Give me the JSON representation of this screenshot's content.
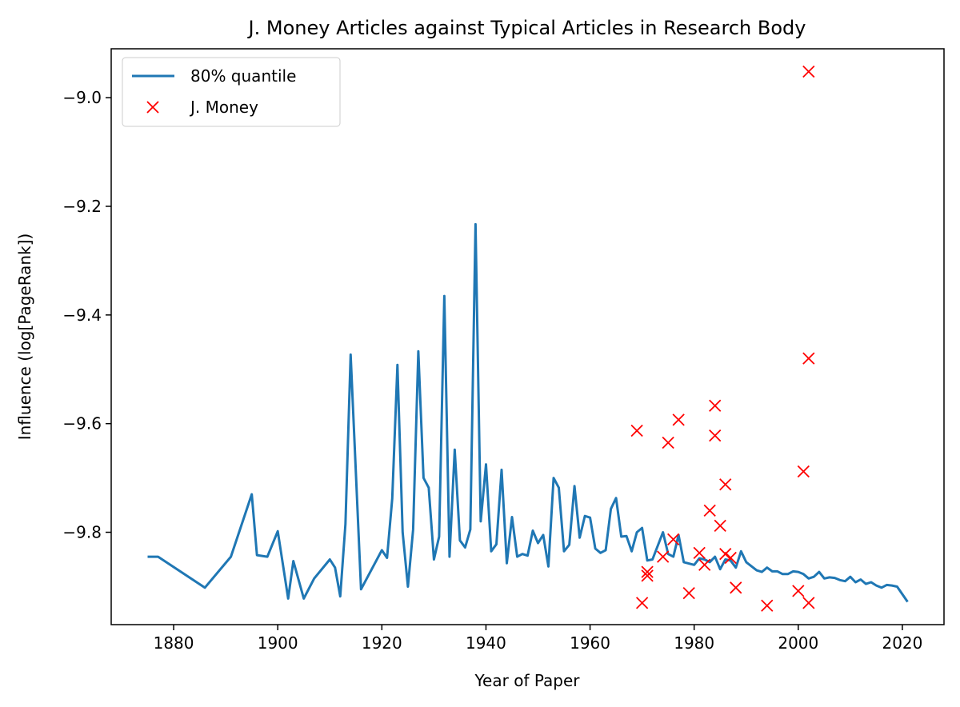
{
  "chart_data": {
    "type": "line",
    "title": "J. Money Articles against Typical Articles in Research Body",
    "xlabel": "Year of Paper",
    "ylabel": "Influence (log[PageRank])",
    "xlim": [
      1868,
      2028
    ],
    "ylim": [
      -9.97,
      -8.91
    ],
    "xticks": [
      1880,
      1900,
      1920,
      1940,
      1960,
      1980,
      2000,
      2020
    ],
    "yticks": [
      -9.0,
      -9.2,
      -9.4,
      -9.6,
      -9.8
    ],
    "ytick_labels": [
      "−9.0",
      "−9.2",
      "−9.4",
      "−9.6",
      "−9.8"
    ],
    "grid": false,
    "legend_position": "top-left",
    "series": [
      {
        "name": "80% quantile",
        "kind": "line",
        "color": "#1f77b4",
        "points": [
          [
            1875,
            -9.845
          ],
          [
            1877,
            -9.845
          ],
          [
            1886,
            -9.902
          ],
          [
            1891,
            -9.845
          ],
          [
            1895,
            -9.73
          ],
          [
            1896,
            -9.842
          ],
          [
            1898,
            -9.845
          ],
          [
            1900,
            -9.798
          ],
          [
            1902,
            -9.922
          ],
          [
            1903,
            -9.853
          ],
          [
            1905,
            -9.922
          ],
          [
            1907,
            -9.885
          ],
          [
            1910,
            -9.85
          ],
          [
            1911,
            -9.865
          ],
          [
            1912,
            -9.918
          ],
          [
            1913,
            -9.785
          ],
          [
            1914,
            -9.473
          ],
          [
            1916,
            -9.905
          ],
          [
            1920,
            -9.833
          ],
          [
            1921,
            -9.847
          ],
          [
            1922,
            -9.738
          ],
          [
            1923,
            -9.492
          ],
          [
            1924,
            -9.8
          ],
          [
            1925,
            -9.9
          ],
          [
            1926,
            -9.795
          ],
          [
            1927,
            -9.467
          ],
          [
            1928,
            -9.7
          ],
          [
            1929,
            -9.718
          ],
          [
            1930,
            -9.85
          ],
          [
            1931,
            -9.808
          ],
          [
            1932,
            -9.365
          ],
          [
            1933,
            -9.845
          ],
          [
            1934,
            -9.648
          ],
          [
            1935,
            -9.815
          ],
          [
            1936,
            -9.828
          ],
          [
            1937,
            -9.795
          ],
          [
            1938,
            -9.233
          ],
          [
            1939,
            -9.78
          ],
          [
            1940,
            -9.675
          ],
          [
            1941,
            -9.835
          ],
          [
            1942,
            -9.822
          ],
          [
            1943,
            -9.685
          ],
          [
            1944,
            -9.857
          ],
          [
            1945,
            -9.772
          ],
          [
            1946,
            -9.845
          ],
          [
            1947,
            -9.84
          ],
          [
            1948,
            -9.843
          ],
          [
            1949,
            -9.797
          ],
          [
            1950,
            -9.82
          ],
          [
            1951,
            -9.805
          ],
          [
            1952,
            -9.863
          ],
          [
            1953,
            -9.7
          ],
          [
            1954,
            -9.718
          ],
          [
            1955,
            -9.835
          ],
          [
            1956,
            -9.823
          ],
          [
            1957,
            -9.715
          ],
          [
            1958,
            -9.81
          ],
          [
            1959,
            -9.77
          ],
          [
            1960,
            -9.773
          ],
          [
            1961,
            -9.83
          ],
          [
            1962,
            -9.838
          ],
          [
            1963,
            -9.833
          ],
          [
            1964,
            -9.757
          ],
          [
            1965,
            -9.737
          ],
          [
            1966,
            -9.808
          ],
          [
            1967,
            -9.807
          ],
          [
            1968,
            -9.835
          ],
          [
            1969,
            -9.8
          ],
          [
            1970,
            -9.792
          ],
          [
            1971,
            -9.852
          ],
          [
            1972,
            -9.85
          ],
          [
            1974,
            -9.8
          ],
          [
            1975,
            -9.84
          ],
          [
            1976,
            -9.845
          ],
          [
            1977,
            -9.805
          ],
          [
            1978,
            -9.855
          ],
          [
            1980,
            -9.86
          ],
          [
            1981,
            -9.848
          ],
          [
            1982,
            -9.85
          ],
          [
            1983,
            -9.855
          ],
          [
            1984,
            -9.845
          ],
          [
            1985,
            -9.868
          ],
          [
            1986,
            -9.85
          ],
          [
            1987,
            -9.852
          ],
          [
            1988,
            -9.865
          ],
          [
            1989,
            -9.835
          ],
          [
            1990,
            -9.855
          ],
          [
            1992,
            -9.87
          ],
          [
            1993,
            -9.873
          ],
          [
            1994,
            -9.865
          ],
          [
            1995,
            -9.872
          ],
          [
            1996,
            -9.872
          ],
          [
            1997,
            -9.877
          ],
          [
            1998,
            -9.877
          ],
          [
            1999,
            -9.872
          ],
          [
            2000,
            -9.873
          ],
          [
            2001,
            -9.877
          ],
          [
            2002,
            -9.885
          ],
          [
            2003,
            -9.882
          ],
          [
            2004,
            -9.873
          ],
          [
            2005,
            -9.885
          ],
          [
            2006,
            -9.883
          ],
          [
            2007,
            -9.884
          ],
          [
            2008,
            -9.888
          ],
          [
            2009,
            -9.89
          ],
          [
            2010,
            -9.882
          ],
          [
            2011,
            -9.892
          ],
          [
            2012,
            -9.887
          ],
          [
            2013,
            -9.895
          ],
          [
            2014,
            -9.892
          ],
          [
            2015,
            -9.898
          ],
          [
            2016,
            -9.902
          ],
          [
            2017,
            -9.897
          ],
          [
            2018,
            -9.898
          ],
          [
            2019,
            -9.9
          ],
          [
            2021,
            -9.928
          ]
        ]
      },
      {
        "name": "J. Money",
        "kind": "markers",
        "marker": "x",
        "color": "#ff0000",
        "points": [
          [
            1969,
            -9.613
          ],
          [
            1970,
            -9.93
          ],
          [
            1971,
            -9.873
          ],
          [
            1971,
            -9.88
          ],
          [
            1974,
            -9.845
          ],
          [
            1975,
            -9.635
          ],
          [
            1976,
            -9.813
          ],
          [
            1977,
            -9.593
          ],
          [
            1979,
            -9.912
          ],
          [
            1981,
            -9.838
          ],
          [
            1982,
            -9.86
          ],
          [
            1983,
            -9.76
          ],
          [
            1984,
            -9.567
          ],
          [
            1984,
            -9.622
          ],
          [
            1985,
            -9.788
          ],
          [
            1986,
            -9.712
          ],
          [
            1986,
            -9.84
          ],
          [
            1987,
            -9.847
          ],
          [
            1988,
            -9.902
          ],
          [
            1994,
            -9.935
          ],
          [
            2000,
            -9.908
          ],
          [
            2001,
            -9.688
          ],
          [
            2002,
            -9.93
          ],
          [
            2002,
            -9.48
          ],
          [
            2002,
            -8.952
          ]
        ]
      }
    ]
  }
}
